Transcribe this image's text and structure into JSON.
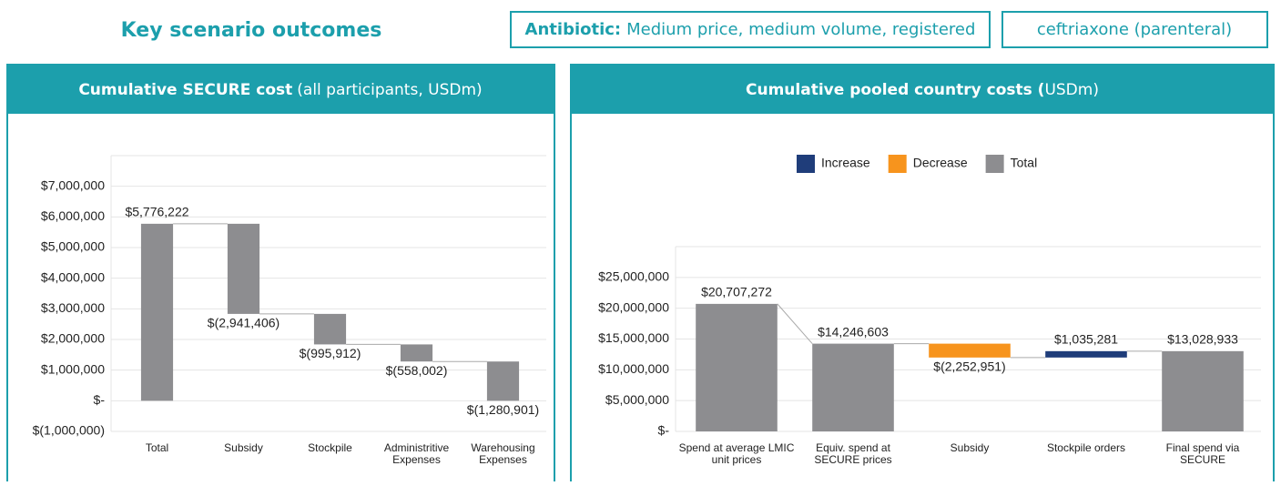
{
  "header": {
    "title": "Key scenario outcomes",
    "antibiotic_label": "Antibiotic:",
    "antibiotic": "Medium price, medium volume, registered",
    "drug": "ceftriaxone (parenteral)"
  },
  "chart_data": [
    {
      "type": "waterfall",
      "title": "Cumulative SECURE cost",
      "subtitle": "(all participants, USDm)",
      "categories": [
        "Total",
        "Subsidy",
        "Stockpile",
        "Administritive Expenses",
        "Warehousing Expenses"
      ],
      "values": [
        5776222,
        -2941406,
        -995912,
        -558002,
        -1280901
      ],
      "value_labels": [
        "$5,776,222",
        "$(2,941,406)",
        "$(995,912)",
        "$(558,002)",
        "$(1,280,901)"
      ],
      "kinds": [
        "Total",
        "Decrease",
        "Decrease",
        "Decrease",
        "Decrease"
      ],
      "color": "#8d8d90",
      "ylim": [
        -1000000,
        8000000
      ],
      "yticks": [
        {
          "value": -1000000,
          "label": "$(1,000,000)"
        },
        {
          "value": 0,
          "label": "$-"
        },
        {
          "value": 1000000,
          "label": "$1,000,000"
        },
        {
          "value": 2000000,
          "label": "$2,000,000"
        },
        {
          "value": 3000000,
          "label": "$3,000,000"
        },
        {
          "value": 4000000,
          "label": "$4,000,000"
        },
        {
          "value": 5000000,
          "label": "$5,000,000"
        },
        {
          "value": 6000000,
          "label": "$6,000,000"
        },
        {
          "value": 7000000,
          "label": "$7,000,000"
        }
      ],
      "grid": true
    },
    {
      "type": "waterfall",
      "title": "Cumulative pooled country costs (",
      "subtitle": "USDm)",
      "categories": [
        "Spend at average LMIC unit prices",
        "Equiv. spend at SECURE prices",
        "Subsidy",
        "Stockpile orders",
        "Final spend via SECURE"
      ],
      "values": [
        20707272,
        14246603,
        -2252951,
        1035281,
        13028933
      ],
      "value_labels": [
        "$20,707,272",
        "$14,246,603",
        "$(2,252,951)",
        "$1,035,281",
        "$13,028,933"
      ],
      "kinds": [
        "Total",
        "Total",
        "Decrease",
        "Increase",
        "Total"
      ],
      "legend": [
        {
          "name": "Increase",
          "color": "#1f3d7a"
        },
        {
          "name": "Decrease",
          "color": "#f7941d"
        },
        {
          "name": "Total",
          "color": "#8d8d90"
        }
      ],
      "ylim": [
        0,
        30000000
      ],
      "yticks": [
        {
          "value": 0,
          "label": "$-"
        },
        {
          "value": 5000000,
          "label": "$5,000,000"
        },
        {
          "value": 10000000,
          "label": "$10,000,000"
        },
        {
          "value": 15000000,
          "label": "$15,000,000"
        },
        {
          "value": 20000000,
          "label": "$20,000,000"
        },
        {
          "value": 25000000,
          "label": "$25,000,000"
        }
      ],
      "grid": true
    }
  ]
}
